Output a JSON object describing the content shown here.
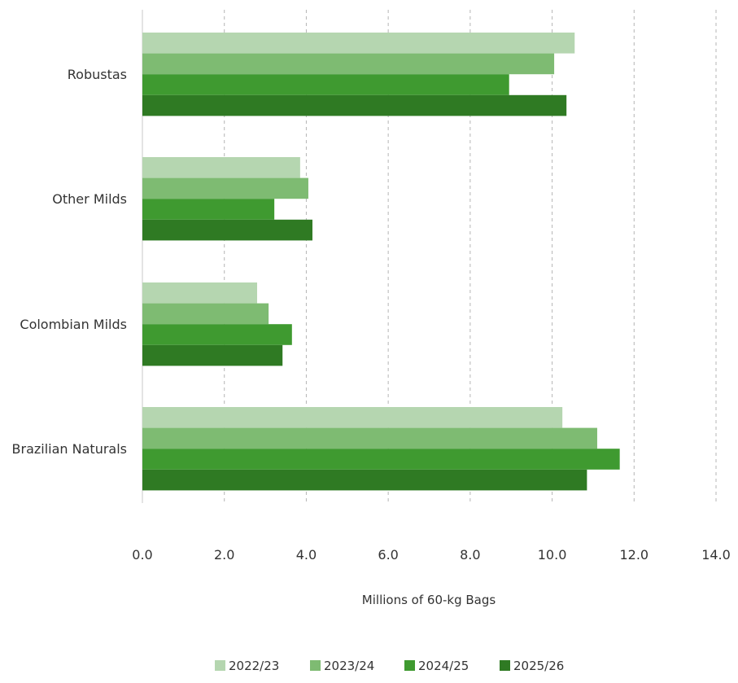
{
  "chart_data": {
    "type": "bar",
    "orientation": "horizontal",
    "categories": [
      "Robustas",
      "Other Milds",
      "Colombian Milds",
      "Brazilian Naturals"
    ],
    "series": [
      {
        "name": "2022/23",
        "color": "#b5d6b0",
        "values": [
          10.55,
          3.85,
          2.8,
          10.25
        ]
      },
      {
        "name": "2023/24",
        "color": "#7ebb72",
        "values": [
          10.05,
          4.05,
          3.08,
          11.1
        ]
      },
      {
        "name": "2024/25",
        "color": "#3f9a30",
        "values": [
          8.95,
          3.22,
          3.65,
          11.65
        ]
      },
      {
        "name": "2025/26",
        "color": "#2f7a23",
        "values": [
          10.35,
          4.15,
          3.42,
          10.85
        ]
      }
    ],
    "xlabel": "Millions  of  60-kg  Bags",
    "xlim": [
      0,
      14
    ],
    "xticks": [
      "0.0",
      "2.0",
      "4.0",
      "6.0",
      "8.0",
      "10.0",
      "12.0",
      "14.0"
    ],
    "grid": "vertical dashed",
    "legend_position": "bottom"
  }
}
